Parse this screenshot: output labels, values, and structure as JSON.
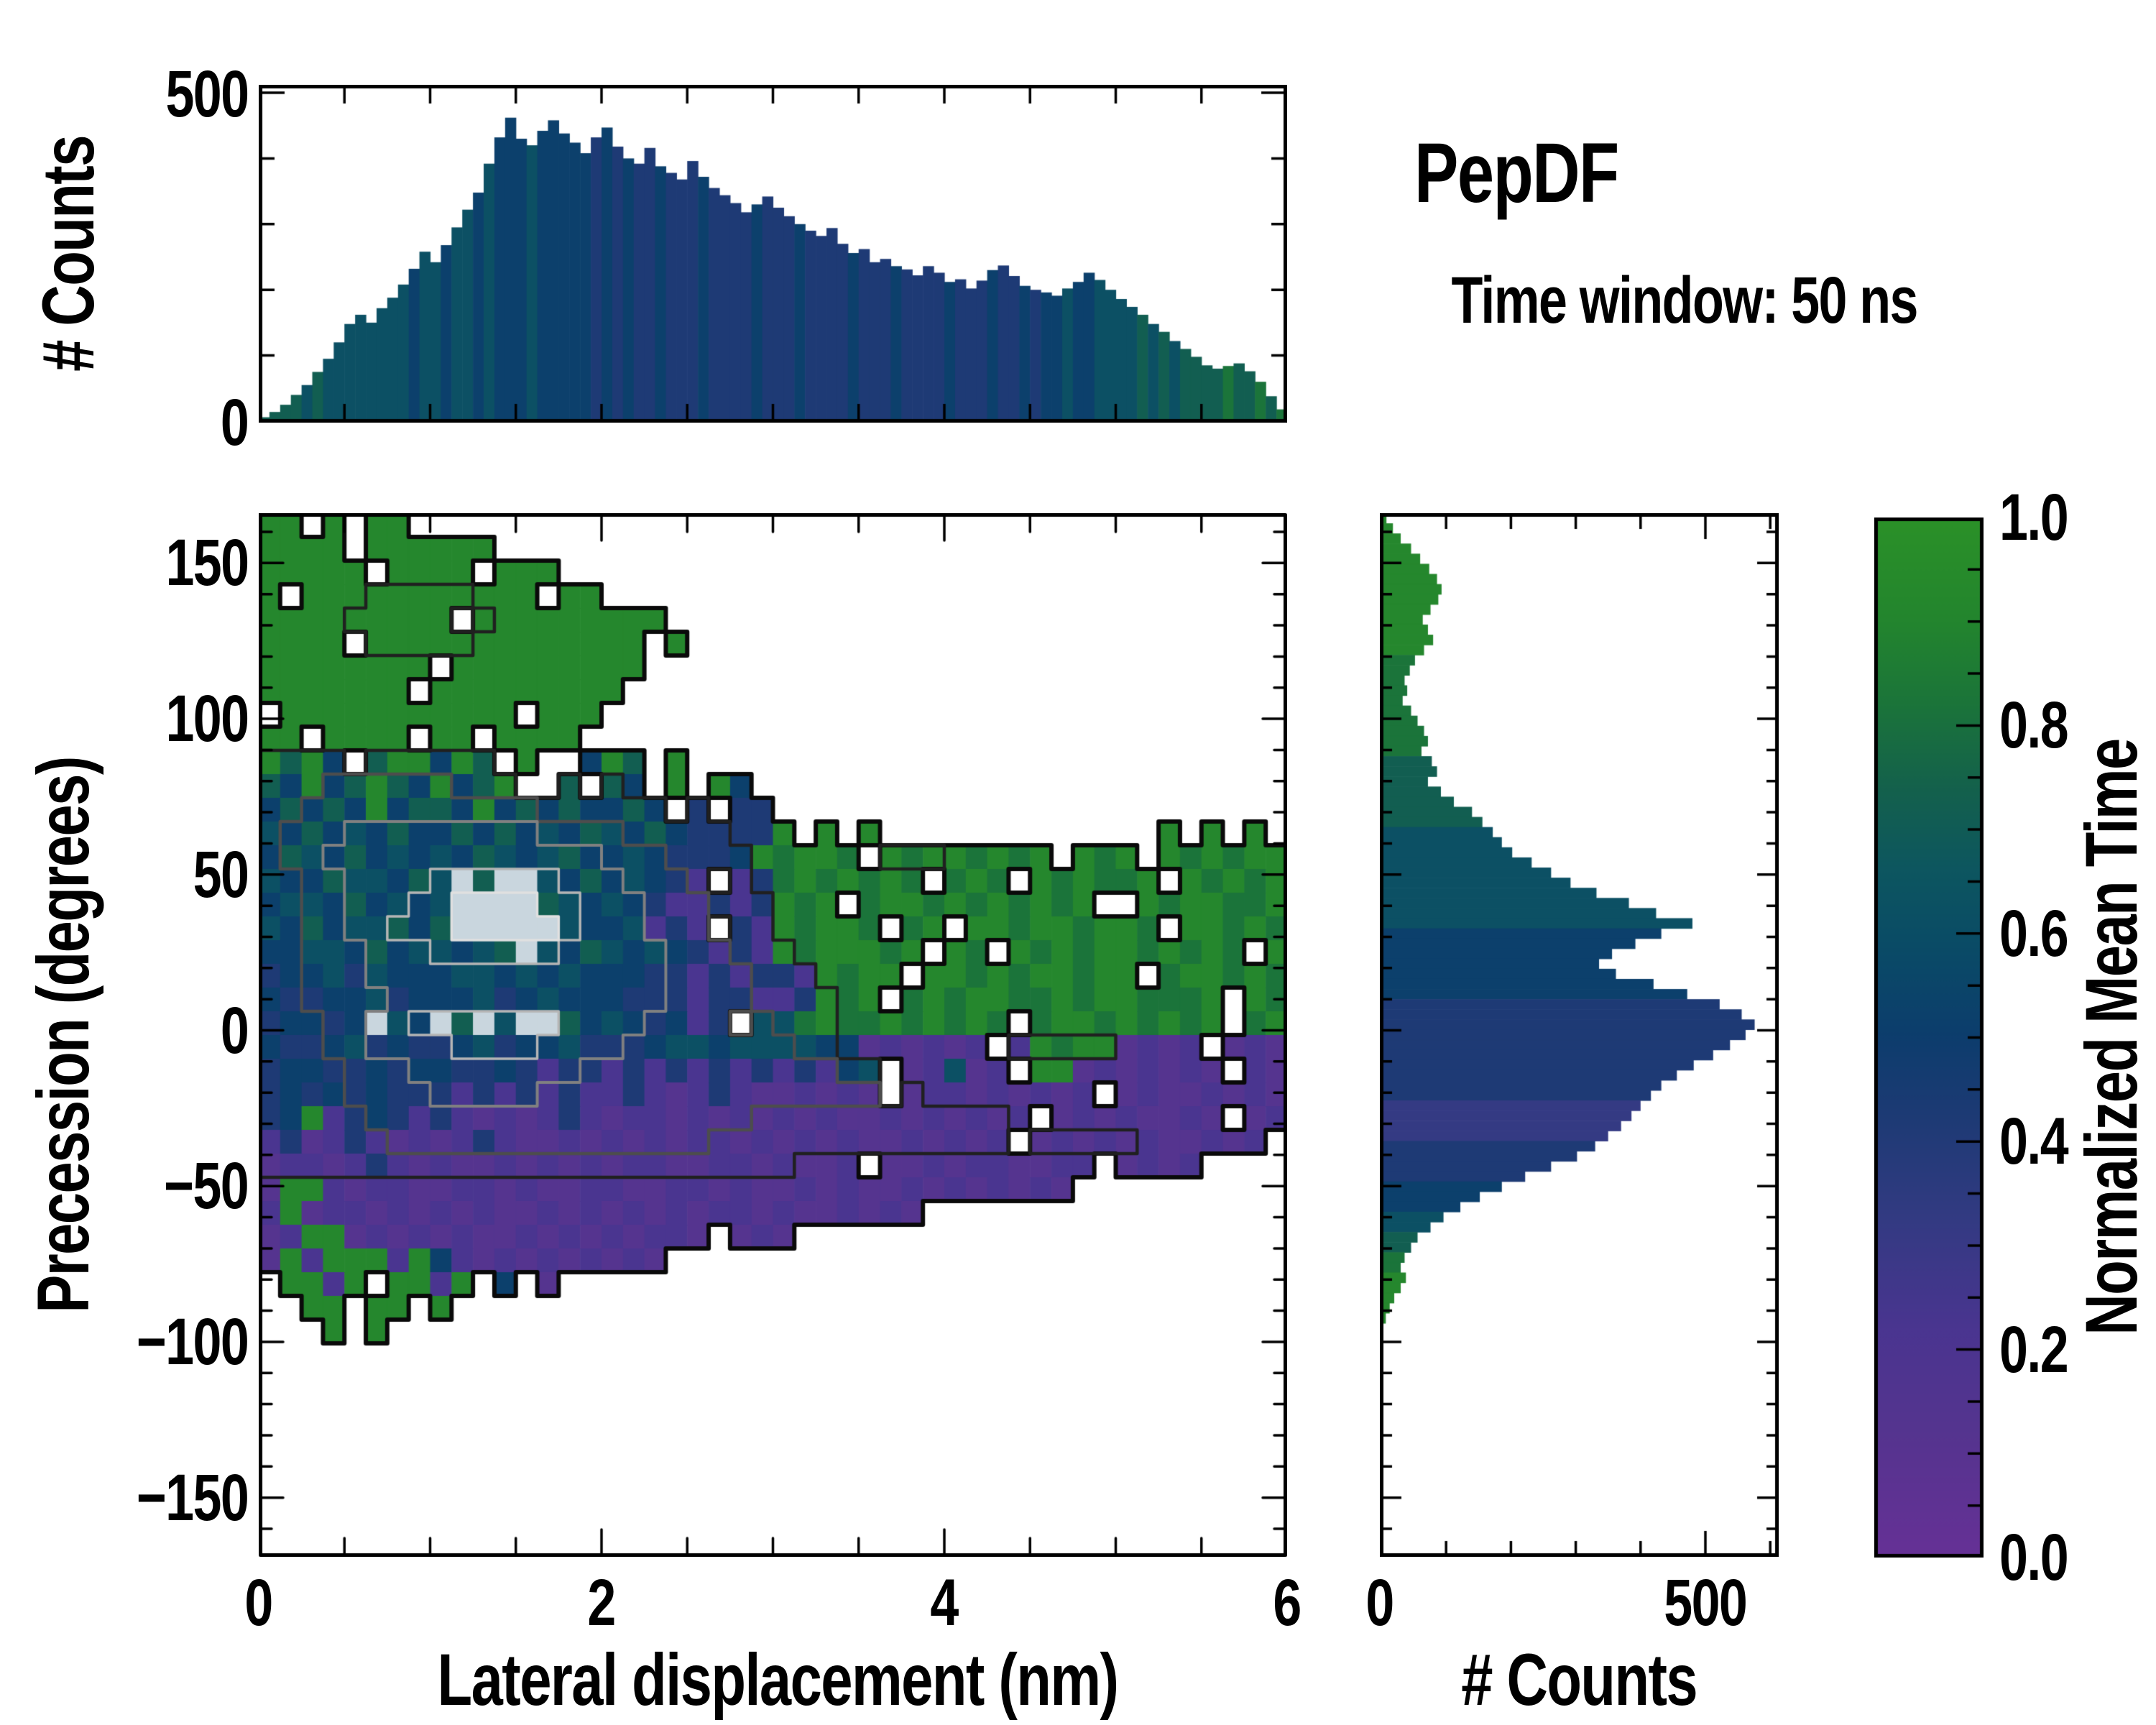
{
  "title": "PepDF",
  "subtitle": "Time window: 50 ns",
  "colormap": {
    "label": "Normalized Mean Time",
    "stops": [
      [
        0,
        "#663196"
      ],
      [
        0.12,
        "#55348f"
      ],
      [
        0.22,
        "#4a3590"
      ],
      [
        0.32,
        "#343a83"
      ],
      [
        0.42,
        "#1e3a75"
      ],
      [
        0.5,
        "#0d3d6d"
      ],
      [
        0.58,
        "#0a4a67"
      ],
      [
        0.66,
        "#0d5660"
      ],
      [
        0.74,
        "#14614c"
      ],
      [
        0.82,
        "#1b743a"
      ],
      [
        0.9,
        "#23852e"
      ],
      [
        1,
        "#2b9128"
      ]
    ],
    "ticks": [
      {
        "v": 1.0,
        "label": "1.0"
      },
      {
        "v": 0.8,
        "label": "0.8"
      },
      {
        "v": 0.6,
        "label": "0.6"
      },
      {
        "v": 0.4,
        "label": "0.4"
      },
      {
        "v": 0.2,
        "label": "0.2"
      },
      {
        "v": 0.0,
        "label": "0.0"
      }
    ]
  },
  "chart_data": {
    "top_hist": {
      "type": "bar",
      "ylabel": "# Counts",
      "x_range": [
        0,
        6
      ],
      "y_range": [
        0,
        514
      ],
      "yticks": [
        {
          "v": 500,
          "label": "500"
        },
        {
          "v": 0,
          "label": "0"
        }
      ],
      "minor_y_step": 100,
      "minor_x_step": 0.5,
      "values": [
        6,
        14,
        25,
        40,
        55,
        75,
        95,
        120,
        148,
        162,
        150,
        172,
        188,
        208,
        232,
        258,
        242,
        268,
        295,
        322,
        348,
        392,
        432,
        462,
        430,
        420,
        442,
        458,
        438,
        424,
        408,
        432,
        447,
        418,
        400,
        392,
        416,
        388,
        378,
        368,
        396,
        372,
        355,
        344,
        332,
        318,
        330,
        342,
        325,
        312,
        300,
        290,
        282,
        294,
        270,
        256,
        262,
        242,
        247,
        236,
        231,
        222,
        236,
        226,
        212,
        216,
        202,
        214,
        230,
        237,
        221,
        206,
        200,
        196,
        191,
        202,
        212,
        226,
        215,
        200,
        186,
        174,
        162,
        148,
        136,
        122,
        110,
        98,
        85,
        80,
        84,
        88,
        76,
        60,
        38,
        18
      ],
      "colors": [
        "77776766",
        "66666656",
        "65665655",
        "56555554",
        "54544544",
        "45444454",
        "44544445",
        "44454444",
        "54445445",
        "45565566",
        "66767677",
        "77877878"
      ]
    },
    "main": {
      "type": "heatmap",
      "xlabel": "Lateral displacement (nm)",
      "ylabel": "Precession (degrees)",
      "x_range": [
        0,
        6
      ],
      "deg_top": 166,
      "deg_bottom": -169,
      "xticks": [
        {
          "v": 0,
          "label": "0"
        },
        {
          "v": 2,
          "label": "2"
        },
        {
          "v": 4,
          "label": "4"
        },
        {
          "v": 6,
          "label": "6"
        }
      ],
      "yticks": [
        {
          "v": 150,
          "label": "150"
        },
        {
          "v": 100,
          "label": "100"
        },
        {
          "v": 50,
          "label": "50"
        },
        {
          "v": 0,
          "label": "0"
        },
        {
          "v": -50,
          "label": "−50"
        },
        {
          "v": -100,
          "label": "−100"
        },
        {
          "v": -150,
          "label": "−150"
        }
      ],
      "minor_x_step": 0.5,
      "minor_y_step": 10,
      "light_cell": "#c9d6de",
      "contour_levels": [
        [
          0.5,
          "#0a0a0a",
          6
        ],
        [
          2.5,
          "#202020",
          4.5
        ],
        [
          4.5,
          "#4d4d4d",
          4.5
        ],
        [
          5.5,
          "#808080",
          4
        ],
        [
          7.5,
          "#b5b5b5",
          3.5
        ],
        [
          8.5,
          "#e0e0e0",
          3.5
        ]
      ],
      "cells": [
        [
          "99.9.99.",
          "........",
          "........",
          "........",
          "........",
          "........"
        ],
        [
          "9999.999",
          "999.....",
          "........",
          "........",
          "........",
          "........"
        ],
        [
          "99999.99",
          "99.999..",
          "........",
          "........",
          "........",
          "........"
        ],
        [
          "9.999999",
          "99999.99",
          "........",
          "........",
          "........",
          "........"
        ],
        [
          "99999999",
          "9.999999",
          "999.....",
          "........",
          "........",
          "........"
        ],
        [
          "9999.999",
          "99999999",
          "99.9....",
          "........",
          "........",
          "........"
        ],
        [
          "99999999",
          ".9999999",
          "99......",
          "........",
          "........",
          "........"
        ],
        [
          "9999999.",
          "99999999",
          "9.......",
          "........",
          "........",
          "........"
        ],
        [
          ".9999999",
          "9999.999",
          "........",
          "........",
          "........",
          "........"
        ],
        [
          "99.9999.",
          "99.9999.",
          "........",
          "........",
          "........",
          "........"
        ],
        [
          "9795.799",
          "597.9..5",
          "97.9....",
          "........",
          "........",
          "........"
        ],
        [
          "75957975",
          "9579..7.",
          "75.9.95.",
          "........",
          "........",
          "........"
        ],
        [
          "57575957",
          "75957575",
          "575.4.44",
          "........",
          "........",
          "........"
        ],
        [
          "65756575",
          "57575657",
          "65754444",
          "9.9.9...",
          "........",
          "..9.9.9."
        ],
        [
          "57657565",
          "65765675",
          "56544459",
          "8998.989",
          "98989.98",
          "9.989899"
        ],
        [
          "65576657",
          "6w7ww657",
          "56542.24",
          "8989898.",
          "898.9898",
          "89.98989"
        ],
        [
          "56657565",
          "6wwww765",
          "65422424",
          "989.8998",
          "9898989.",
          ".9899889"
        ],
        [
          "65756675",
          "7wwwww65",
          "56242.42",
          "98998.89",
          ".9989989",
          "98.99898"
        ],
        [
          "55665756",
          "6567w657",
          "65654242",
          "9899989.",
          "98.98989",
          "989898.9"
        ],
        [
          "45564655",
          "56656565",
          "55442424",
          "429899.9",
          "98989989",
          "9.899898"
        ],
        [
          "54455645",
          "55645655",
          "54442442",
          "24989.89",
          "89988989",
          "98889.98"
        ],
        [
          "45545w65",
          "w7w6ww75",
          "654524.6",
          "68988989",
          "898.8998",
          "98989.89"
        ],
        [
          "54456454",
          "45645564",
          "44566566",
          "66551212",
          "12.29899",
          "1212.121"
        ],
        [
          "45544545",
          "54454244",
          "24242424",
          "24256.12",
          "612.9912",
          "12121.21"
        ],
        [
          "45454544",
          "42424242",
          "24212421",
          "12121.12",
          "2121212.",
          "12112121"
        ],
        [
          "45924542",
          "42121242",
          "12212121",
          "21211212",
          "1212.121",
          "21121.12"
        ],
        [
          "24124212",
          "12421121",
          "21212212",
          "12121121",
          "212.1212",
          "1211212."
        ],
        [
          "12212421",
          "21121212",
          "12211221",
          "2112.112",
          "1221122.",
          "1212...."
        ],
        [
          "19921221",
          "12212112",
          "21122121",
          "12121121",
          "212121..",
          "........"
        ],
        [
          "29122121",
          "21211212",
          "12121221",
          "2112121.",
          "........",
          "........"
        ],
        [
          "12991212",
          "12112121",
          "21221.12",
          "1.......",
          "........",
          "........"
        ],
        [
          "19299929",
          "52121212",
          "121.....",
          "........",
          "........",
          "........"
        ],
        [
          ".9929.99",
          "29.5.1..",
          "........",
          "........",
          "........",
          "........"
        ],
        [
          "..99.99.",
          "9.......",
          "........",
          "........",
          "........",
          "........"
        ],
        [
          "...9.9..",
          "........",
          "........",
          "........",
          "........",
          "........"
        ],
        [
          "........",
          "........",
          "........",
          "........",
          "........",
          "........"
        ],
        [
          "........",
          "........",
          "........",
          "........",
          "........",
          "........"
        ],
        [
          "........",
          "........",
          "........",
          "........",
          "........",
          "........"
        ],
        [
          "........",
          "........",
          "........",
          "........",
          "........",
          "........"
        ],
        [
          "........",
          "........",
          "........",
          "........",
          "........",
          "........"
        ],
        [
          "........",
          "........",
          "........",
          "........",
          "........",
          "........"
        ],
        [
          "........",
          "........",
          "........",
          "........",
          "........",
          "........"
        ],
        [
          "........",
          "........",
          "........",
          "........",
          "........",
          "........"
        ],
        [
          "........",
          "........",
          "........",
          "........",
          "........",
          "........"
        ]
      ],
      "density": [
        [
          "00000000",
          "00000000",
          "00000000",
          "00000000",
          "00000000",
          "00000000"
        ],
        [
          "00000000",
          "00000000",
          "00000000",
          "00000000",
          "00000000",
          "00000000"
        ],
        [
          "00000000",
          "00000000",
          "00000000",
          "00000000",
          "00000000",
          "00000000"
        ],
        [
          "00000333",
          "33000000",
          "00000000",
          "00000000",
          "00000000",
          "00000000"
        ],
        [
          "00003333",
          "33300000",
          "00000000",
          "00000000",
          "00000000",
          "00000000"
        ],
        [
          "00000333",
          "33000000",
          "00000000",
          "00000000",
          "00000000",
          "00000000"
        ],
        [
          "00000000",
          "00000000",
          "00000000",
          "00000000",
          "00000000",
          "00000000"
        ],
        [
          "00000000",
          "00000000",
          "00000000",
          "00000000",
          "00000000",
          "00000000"
        ],
        [
          "00000000",
          "00000000",
          "00000000",
          "00000000",
          "00000000",
          "00000000"
        ],
        [
          "00000000",
          "00000000",
          "00000000",
          "00000000",
          "00000000",
          "00000000"
        ],
        [
          "33333333",
          "33300000",
          "00000000",
          "00000000",
          "00000000",
          "00000000"
        ],
        [
          "33355555",
          "53333333",
          "30000000",
          "00000000",
          "00000000",
          "00000000"
        ],
        [
          "33555555",
          "55555333",
          "33333000",
          "00000000",
          "00000000",
          "00000000"
        ],
        [
          "35556666",
          "66666555",
          "53333300",
          "00000000",
          "00000000",
          "00000000"
        ],
        [
          "35566666",
          "66666666",
          "55533330",
          "00003333",
          "00000000",
          "00000000"
        ],
        [
          "33556666",
          "88888866",
          "65553330",
          "00000000",
          "00000000",
          "00000000"
        ],
        [
          "33556668",
          "89999886",
          "66555333",
          "00000000",
          "00000000",
          "00000000"
        ],
        [
          "33556688",
          "89999986",
          "66555333",
          "00000000",
          "00000000",
          "00000000"
        ],
        [
          "33555666",
          "88888866",
          "66655533",
          "30000000",
          "00000000",
          "00000000"
        ],
        [
          "33555666",
          "66666666",
          "66655553",
          "33000000",
          "00000000",
          "00000000"
        ],
        [
          "33555566",
          "66666666",
          "66655553",
          "33300000",
          "00000000",
          "00000000"
        ],
        [
          "33355668",
          "88888866",
          "66555555",
          "33300000",
          "00000000",
          "00000000"
        ],
        [
          "33355666",
          "68888666",
          "65555555",
          "53300000",
          "00033333",
          "00000000"
        ],
        [
          "33335556",
          "66666665",
          "55555555",
          "55533000",
          "00000000",
          "00000000"
        ],
        [
          "33335555",
          "66666555",
          "55555555",
          "55555330",
          "00000000",
          "00000000"
        ],
        [
          "33333555",
          "55555555",
          "55555553",
          "33333333",
          "33300000",
          "00000000"
        ],
        [
          "33333355",
          "55555555",
          "55555333",
          "33333333",
          "33333333",
          "30000000"
        ],
        [
          "33333333",
          "33333333",
          "33333333",
          "30000000",
          "00000000",
          "00000000"
        ],
        [
          "00000000",
          "00000000",
          "00000000",
          "00000000",
          "00000000",
          "00000000"
        ],
        [
          "00000000",
          "00000000",
          "00000000",
          "00000000",
          "00000000",
          "00000000"
        ],
        [
          "00000000",
          "00000000",
          "00000000",
          "00000000",
          "00000000",
          "00000000"
        ],
        [
          "00000000",
          "00000000",
          "00000000",
          "00000000",
          "00000000",
          "00000000"
        ],
        [
          "00000000",
          "00000000",
          "00000000",
          "00000000",
          "00000000",
          "00000000"
        ],
        [
          "00000000",
          "00000000",
          "00000000",
          "00000000",
          "00000000",
          "00000000"
        ],
        [
          "00000000",
          "00000000",
          "00000000",
          "00000000",
          "00000000",
          "00000000"
        ],
        [
          "00000000",
          "00000000",
          "00000000",
          "00000000",
          "00000000",
          "00000000"
        ],
        [
          "00000000",
          "00000000",
          "00000000",
          "00000000",
          "00000000",
          "00000000"
        ],
        [
          "00000000",
          "00000000",
          "00000000",
          "00000000",
          "00000000",
          "00000000"
        ],
        [
          "00000000",
          "00000000",
          "00000000",
          "00000000",
          "00000000",
          "00000000"
        ],
        [
          "00000000",
          "00000000",
          "00000000",
          "00000000",
          "00000000",
          "00000000"
        ],
        [
          "00000000",
          "00000000",
          "00000000",
          "00000000",
          "00000000",
          "00000000"
        ],
        [
          "00000000",
          "00000000",
          "00000000",
          "00000000",
          "00000000",
          "00000000"
        ],
        [
          "00000000",
          "00000000",
          "00000000",
          "00000000",
          "00000000",
          "00000000"
        ],
        [
          "00000000",
          "00000000",
          "00000000",
          "00000000",
          "00000000",
          "00000000"
        ]
      ]
    },
    "right_hist": {
      "type": "barh",
      "xlabel": "# Counts",
      "x_range": [
        0,
        612
      ],
      "xticks": [
        {
          "v": 0,
          "label": "0"
        },
        {
          "v": 500,
          "label": "500"
        }
      ],
      "minor_x_step": 100,
      "deg_start": 166,
      "deg_step": 3.25,
      "values": [
        8,
        18,
        30,
        46,
        60,
        74,
        86,
        93,
        88,
        76,
        64,
        72,
        80,
        66,
        52,
        44,
        36,
        40,
        33,
        46,
        56,
        66,
        72,
        62,
        78,
        86,
        72,
        92,
        112,
        140,
        156,
        172,
        186,
        202,
        232,
        262,
        292,
        332,
        382,
        424,
        480,
        432,
        392,
        356,
        336,
        362,
        420,
        472,
        522,
        556,
        576,
        562,
        538,
        512,
        482,
        456,
        432,
        416,
        400,
        386,
        370,
        350,
        330,
        302,
        262,
        222,
        186,
        152,
        122,
        96,
        76,
        56,
        46,
        36,
        30,
        38,
        30,
        20,
        13,
        7
      ],
      "colors": [
        "99999999",
        "99999988",
        "88888888",
        "77777776",
        "66666666",
        "65555555",
        "44444444",
        "44333344",
        "44555667",
        "78899999"
      ]
    }
  }
}
